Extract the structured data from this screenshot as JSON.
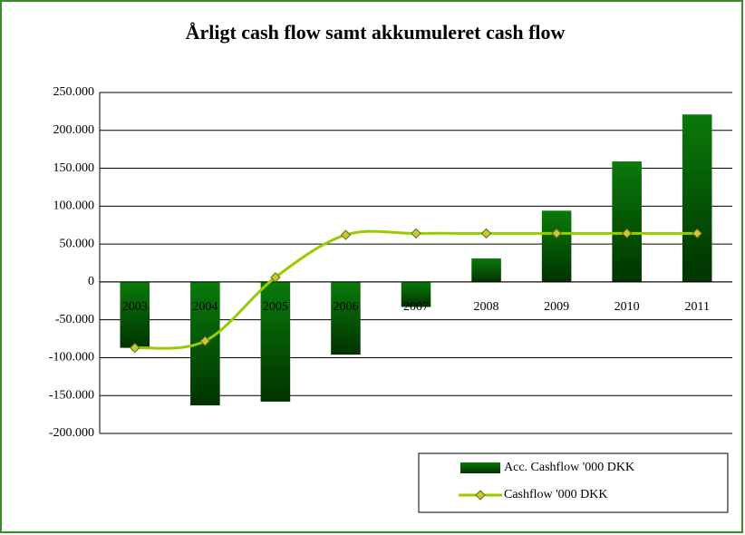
{
  "chart_data": {
    "type": "bar",
    "title": "Årligt cash flow samt akkumuleret cash flow",
    "categories": [
      "2003",
      "2004",
      "2005",
      "2006",
      "2007",
      "2008",
      "2009",
      "2010",
      "2011"
    ],
    "series": [
      {
        "name": "Acc. Cashflow '000 DKK",
        "type": "bar",
        "color": "#0a7a0a",
        "values": [
          -87000,
          -163000,
          -158000,
          -96000,
          -33000,
          31000,
          94000,
          159000,
          221000
        ]
      },
      {
        "name": "Cashflow '000 DKK",
        "type": "line",
        "color": "#99cc00",
        "values": [
          -87000,
          -78000,
          6000,
          62000,
          64000,
          64000,
          64000,
          64000,
          64000
        ]
      }
    ],
    "ylim": [
      -200000,
      250000
    ],
    "yticks": [
      {
        "value": -200000,
        "label": "-200.000"
      },
      {
        "value": -150000,
        "label": "-150.000"
      },
      {
        "value": -100000,
        "label": "-100.000"
      },
      {
        "value": -50000,
        "label": "-50.000"
      },
      0,
      {
        "value": 50000,
        "label": "50.000"
      },
      {
        "value": 100000,
        "label": "100.000"
      },
      {
        "value": 150000,
        "label": "150.000"
      },
      {
        "value": 200000,
        "label": "200.000"
      },
      {
        "value": 250000,
        "label": "250.000"
      }
    ],
    "grid": true,
    "legend": "bottom-right"
  }
}
